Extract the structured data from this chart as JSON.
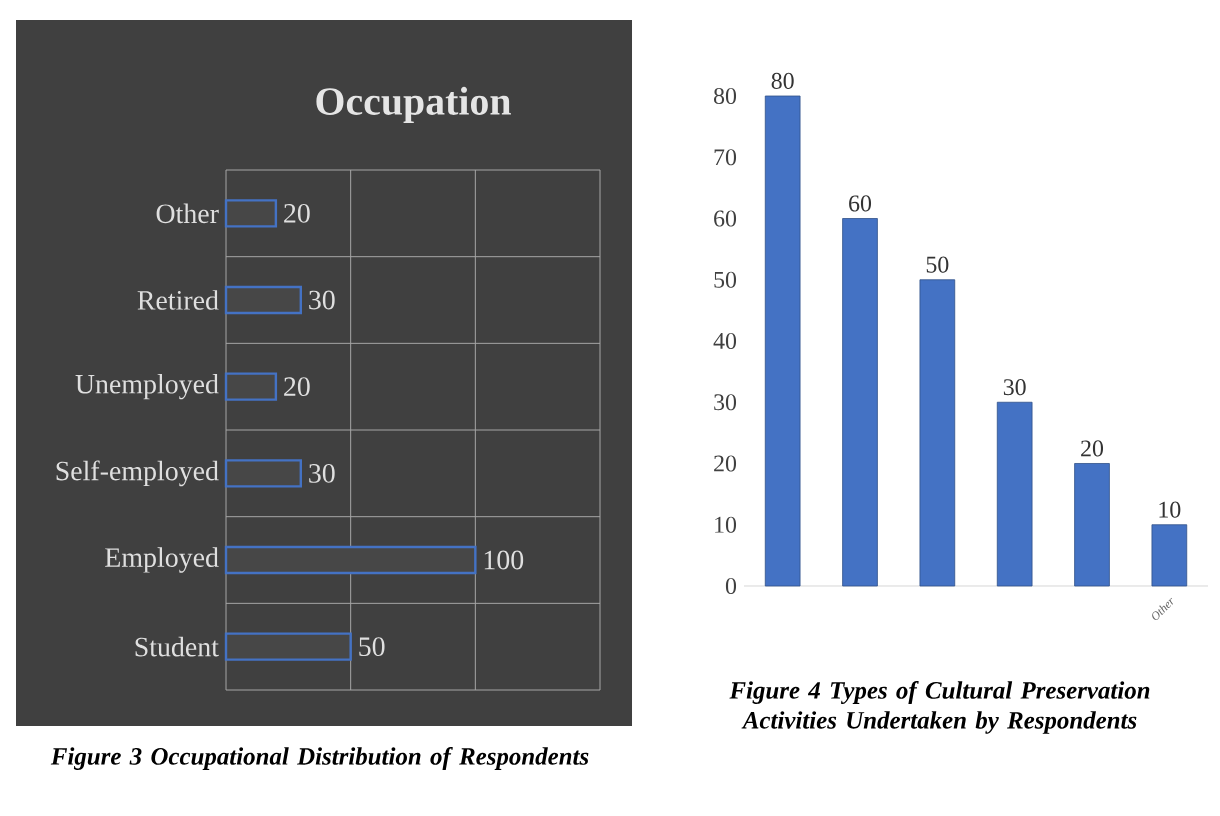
{
  "chart_data": [
    {
      "type": "bar",
      "title": "Occupation",
      "orientation": "horizontal",
      "categories": [
        "Other",
        "Retired",
        "Unemployed",
        "Self-employed",
        "Employed",
        "Student"
      ],
      "values": [
        20,
        30,
        20,
        30,
        100,
        50
      ],
      "color": "#4472c4",
      "xlim": [
        0,
        150
      ],
      "xticks": [
        {
          "value": 0,
          "label": null
        },
        {
          "value": 50,
          "label": null
        },
        {
          "value": 100,
          "label": null
        },
        {
          "value": 150,
          "label": null
        }
      ],
      "grid": true,
      "data_labels": true,
      "tick_labels": "y",
      "annotations": [
        "Figure 3 Occupational Distribution of Respondents"
      ]
    },
    {
      "type": "bar",
      "categories": [
        null,
        null,
        null,
        null,
        null,
        "Other"
      ],
      "values": [
        80,
        60,
        50,
        30,
        20,
        10
      ],
      "color": "#4472c4",
      "ylim": [
        0,
        80
      ],
      "yticks": [
        0,
        10,
        20,
        30,
        40,
        50,
        60,
        70,
        80
      ],
      "data_labels": true,
      "annotations": [
        "Figure 4 Types of Cultural Preservation Activities Undertaken by Respondents"
      ]
    }
  ]
}
